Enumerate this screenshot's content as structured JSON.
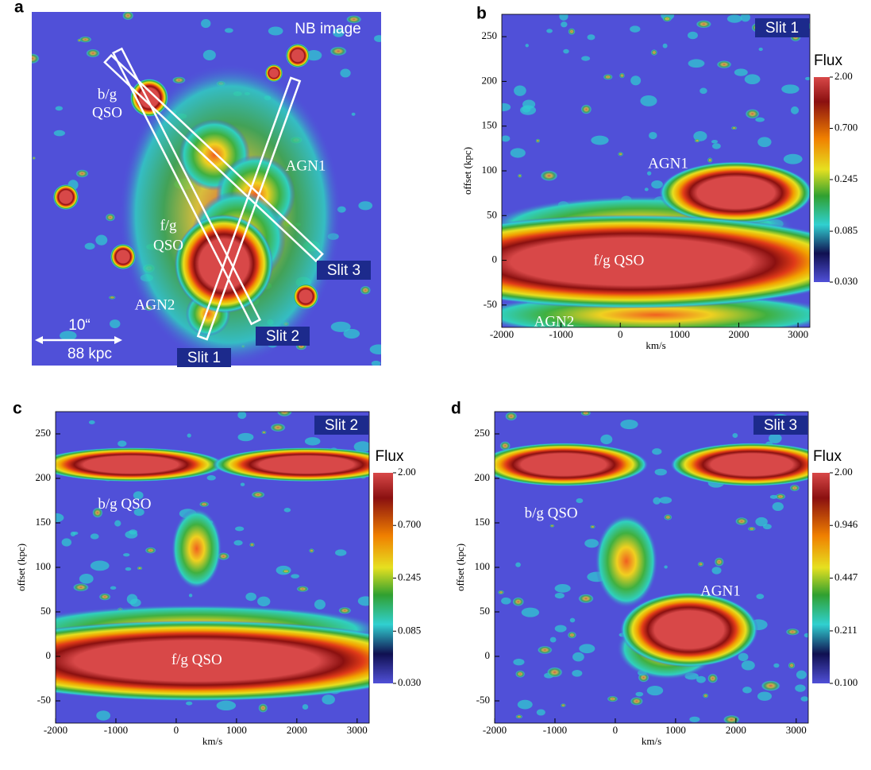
{
  "chart_data": [
    {
      "type": "image",
      "panel": "a",
      "title": "NB image",
      "labels": [
        "b/g",
        "QSO",
        "AGN1",
        "f/g",
        "QSO",
        "AGN2"
      ],
      "slits": [
        "Slit 1",
        "Slit 2",
        "Slit 3"
      ],
      "scale_bar": [
        "10“",
        "88 kpc"
      ]
    },
    {
      "type": "heatmap",
      "panel": "b",
      "slit": "Slit 1",
      "xlabel": "km/s",
      "ylabel": "offset (kpc)",
      "labels": [
        "AGN1",
        "f/g QSO",
        "AGN2"
      ],
      "xlim": [
        -2000,
        3200
      ],
      "xticks": [
        -2000,
        -1000,
        0,
        1000,
        2000,
        3000
      ],
      "ylim": [
        -75,
        275
      ],
      "yticks": [
        -50,
        0,
        50,
        100,
        150,
        200,
        250
      ],
      "colorbar": {
        "title": "Flux",
        "log": true,
        "lim": [
          0.03,
          2
        ],
        "ticks": [
          {
            "value": 2,
            "label": "2.00"
          },
          {
            "value": 0.7,
            "label": "0.700"
          },
          {
            "value": 0.245,
            "label": "0.245"
          },
          {
            "value": 0.085,
            "label": "0.085"
          },
          {
            "value": 0.03,
            "label": "0.030"
          }
        ]
      }
    },
    {
      "type": "heatmap",
      "panel": "c",
      "slit": "Slit 2",
      "xlabel": "km/s",
      "ylabel": "offset (kpc)",
      "labels": [
        "b/g QSO",
        "f/g QSO"
      ],
      "xlim": [
        -2000,
        3200
      ],
      "xticks": [
        -2000,
        -1000,
        0,
        1000,
        2000,
        3000
      ],
      "ylim": [
        -75,
        275
      ],
      "yticks": [
        -50,
        0,
        50,
        100,
        150,
        200,
        250
      ],
      "colorbar": {
        "title": "Flux",
        "log": true,
        "lim": [
          0.03,
          2
        ],
        "ticks": [
          {
            "value": 2,
            "label": "2.00"
          },
          {
            "value": 0.7,
            "label": "0.700"
          },
          {
            "value": 0.245,
            "label": "0.245"
          },
          {
            "value": 0.085,
            "label": "0.085"
          },
          {
            "value": 0.03,
            "label": "0.030"
          }
        ]
      }
    },
    {
      "type": "heatmap",
      "panel": "d",
      "slit": "Slit 3",
      "xlabel": "km/s",
      "ylabel": "offset (kpc)",
      "labels": [
        "b/g QSO",
        "AGN1"
      ],
      "xlim": [
        -2000,
        3200
      ],
      "xticks": [
        -2000,
        -1000,
        0,
        1000,
        2000,
        3000
      ],
      "ylim": [
        -75,
        275
      ],
      "yticks": [
        -50,
        0,
        50,
        100,
        150,
        200,
        250
      ],
      "colorbar": {
        "title": "Flux",
        "log": true,
        "lim": [
          0.1,
          2
        ],
        "ticks": [
          {
            "value": 2,
            "label": "2.00"
          },
          {
            "value": 0.946,
            "label": "0.946"
          },
          {
            "value": 0.447,
            "label": "0.447"
          },
          {
            "value": 0.211,
            "label": "0.211"
          },
          {
            "value": 0.1,
            "label": "0.100"
          }
        ]
      }
    }
  ]
}
